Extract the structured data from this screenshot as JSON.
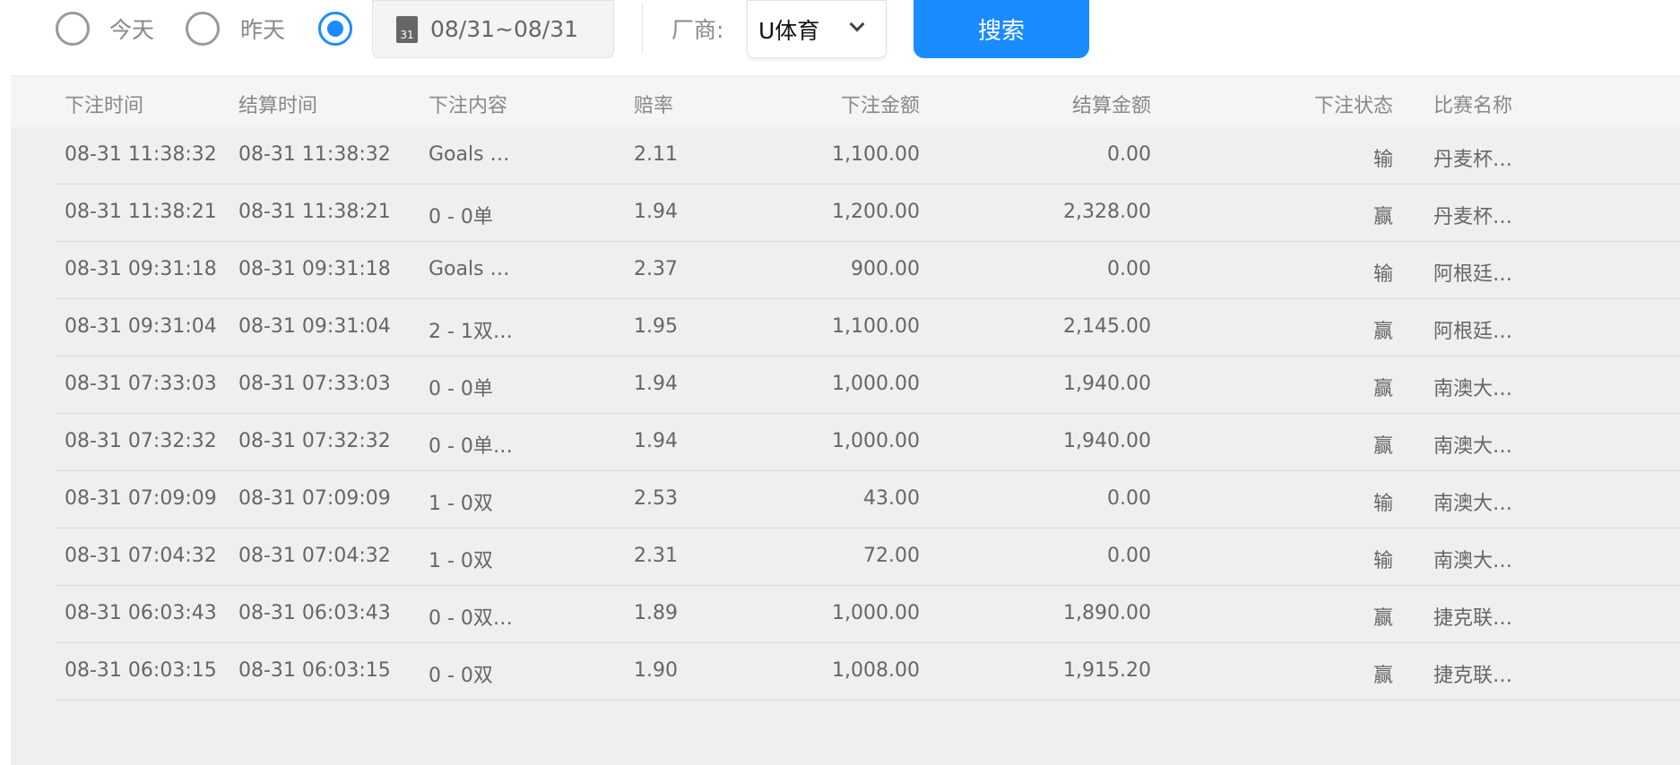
{
  "filters": {
    "today": "今天",
    "yesterday": "昨天",
    "selected": "custom",
    "date_range": "08/31~08/31",
    "calendar_day": "31",
    "vendor_label": "厂商:",
    "vendor_value": "U体育",
    "search_label": "搜索"
  },
  "colors": {
    "accent": "#1a8cff"
  },
  "table": {
    "headers": [
      "下注时间",
      "结算时间",
      "下注内容",
      "赔率",
      "下注金额",
      "结算金额",
      "下注状态",
      "比赛名称"
    ],
    "rows": [
      [
        "08-31 11:38:32",
        "08-31 11:38:32",
        "Goals …",
        "2.11",
        "1,100.00",
        "0.00",
        "输",
        "丹麦杯…"
      ],
      [
        "08-31 11:38:21",
        "08-31 11:38:21",
        "0 - 0单",
        "1.94",
        "1,200.00",
        "2,328.00",
        "赢",
        "丹麦杯…"
      ],
      [
        "08-31 09:31:18",
        "08-31 09:31:18",
        "Goals …",
        "2.37",
        "900.00",
        "0.00",
        "输",
        "阿根廷…"
      ],
      [
        "08-31 09:31:04",
        "08-31 09:31:04",
        "2 - 1双…",
        "1.95",
        "1,100.00",
        "2,145.00",
        "赢",
        "阿根廷…"
      ],
      [
        "08-31 07:33:03",
        "08-31 07:33:03",
        "0 - 0单",
        "1.94",
        "1,000.00",
        "1,940.00",
        "赢",
        "南澳大…"
      ],
      [
        "08-31 07:32:32",
        "08-31 07:32:32",
        "0 - 0单…",
        "1.94",
        "1,000.00",
        "1,940.00",
        "赢",
        "南澳大…"
      ],
      [
        "08-31 07:09:09",
        "08-31 07:09:09",
        "1 - 0双",
        "2.53",
        "43.00",
        "0.00",
        "输",
        "南澳大…"
      ],
      [
        "08-31 07:04:32",
        "08-31 07:04:32",
        "1 - 0双",
        "2.31",
        "72.00",
        "0.00",
        "输",
        "南澳大…"
      ],
      [
        "08-31 06:03:43",
        "08-31 06:03:43",
        "0 - 0双…",
        "1.89",
        "1,000.00",
        "1,890.00",
        "赢",
        "捷克联…"
      ],
      [
        "08-31 06:03:15",
        "08-31 06:03:15",
        "0 - 0双",
        "1.90",
        "1,008.00",
        "1,915.20",
        "赢",
        "捷克联…"
      ]
    ]
  }
}
